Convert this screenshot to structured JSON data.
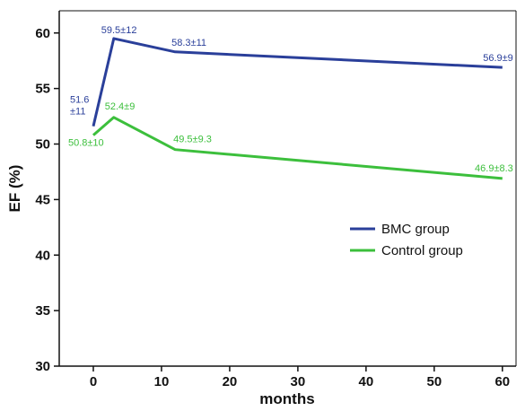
{
  "chart_data": {
    "type": "line",
    "xlabel": "months",
    "ylabel": "EF (%)",
    "xlim": [
      -5,
      62
    ],
    "ylim": [
      30,
      62
    ],
    "xticks": [
      0,
      10,
      20,
      30,
      40,
      50,
      60
    ],
    "yticks": [
      30,
      35,
      40,
      45,
      50,
      55,
      60
    ],
    "grid": false,
    "legend_position": "center-right",
    "series": [
      {
        "name": "BMC group",
        "color": "#2a3f9a",
        "x": [
          0,
          3,
          12,
          60
        ],
        "y": [
          51.6,
          59.5,
          58.3,
          56.9
        ],
        "labels": [
          "51.6 ±11",
          "59.5±12",
          "58.3±11",
          "56.9±9"
        ]
      },
      {
        "name": "Control group",
        "color": "#3cbf3c",
        "x": [
          0,
          3,
          12,
          60
        ],
        "y": [
          50.8,
          52.4,
          49.5,
          46.9
        ],
        "labels": [
          "50.8±10",
          "52.4±9",
          "49.5±9.3",
          "46.9±8.3"
        ]
      }
    ]
  }
}
